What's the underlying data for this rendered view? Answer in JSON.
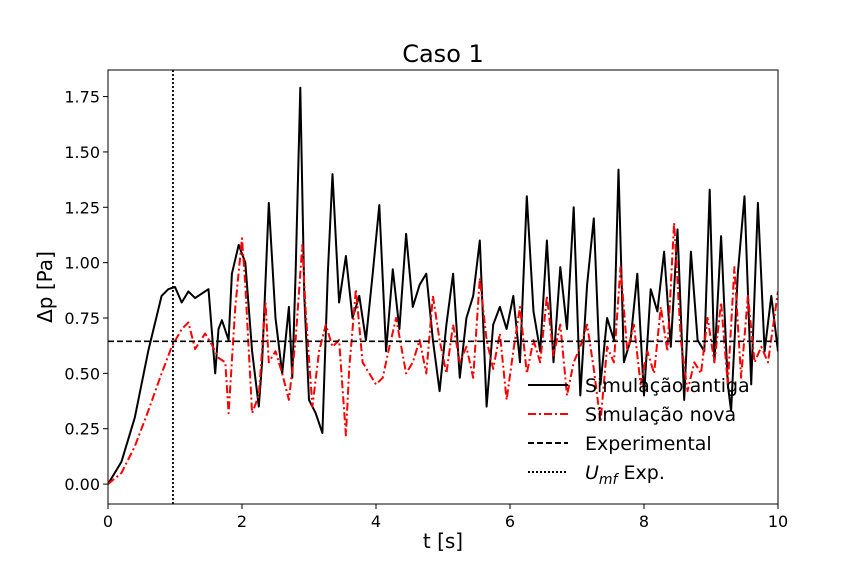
{
  "chart_data": {
    "type": "line",
    "title": "Caso 1",
    "xlabel": "t [s]",
    "ylabel": "Δp [Pa]",
    "xlim": [
      0,
      10
    ],
    "ylim": [
      -0.09,
      1.87
    ],
    "xticks": [
      0,
      2,
      4,
      6,
      8,
      10
    ],
    "xtick_labels": [
      "0",
      "2",
      "4",
      "6",
      "8",
      "10"
    ],
    "yticks": [
      0.0,
      0.25,
      0.5,
      0.75,
      1.0,
      1.25,
      1.5,
      1.75
    ],
    "ytick_labels": [
      "0.00",
      "0.25",
      "0.50",
      "0.75",
      "1.00",
      "1.25",
      "1.50",
      "1.75"
    ],
    "grid": false,
    "legend_position": "bottom-right",
    "series": [
      {
        "name": "Simulação antiga",
        "color": "#000000",
        "style": "solid",
        "x": [
          0,
          0.2,
          0.4,
          0.6,
          0.8,
          0.9,
          1.0,
          1.1,
          1.2,
          1.3,
          1.4,
          1.5,
          1.6,
          1.65,
          1.7,
          1.8,
          1.85,
          1.95,
          2.05,
          2.15,
          2.25,
          2.3,
          2.4,
          2.5,
          2.6,
          2.7,
          2.75,
          2.8,
          2.87,
          2.93,
          3.0,
          3.1,
          3.2,
          3.28,
          3.35,
          3.45,
          3.55,
          3.65,
          3.75,
          3.85,
          3.95,
          4.05,
          4.15,
          4.25,
          4.35,
          4.45,
          4.55,
          4.65,
          4.75,
          4.85,
          4.95,
          5.05,
          5.15,
          5.25,
          5.35,
          5.45,
          5.55,
          5.65,
          5.75,
          5.85,
          5.95,
          6.05,
          6.15,
          6.25,
          6.35,
          6.45,
          6.55,
          6.65,
          6.75,
          6.85,
          6.95,
          7.05,
          7.15,
          7.25,
          7.35,
          7.45,
          7.55,
          7.62,
          7.7,
          7.8,
          7.9,
          8.0,
          8.1,
          8.2,
          8.3,
          8.4,
          8.5,
          8.6,
          8.7,
          8.8,
          8.9,
          8.98,
          9.05,
          9.15,
          9.25,
          9.3,
          9.4,
          9.5,
          9.6,
          9.7,
          9.8,
          9.9,
          10.0
        ],
        "y": [
          0.0,
          0.1,
          0.3,
          0.6,
          0.85,
          0.88,
          0.89,
          0.82,
          0.87,
          0.84,
          0.86,
          0.88,
          0.5,
          0.7,
          0.74,
          0.65,
          0.95,
          1.08,
          1.0,
          0.6,
          0.35,
          0.55,
          1.27,
          0.75,
          0.5,
          0.8,
          0.48,
          0.95,
          1.79,
          0.85,
          0.38,
          0.32,
          0.23,
          0.95,
          1.4,
          0.82,
          1.03,
          0.75,
          0.85,
          0.65,
          0.95,
          1.26,
          0.6,
          0.97,
          0.7,
          1.13,
          0.8,
          0.9,
          0.95,
          0.65,
          0.42,
          0.72,
          0.95,
          0.48,
          0.75,
          0.85,
          1.1,
          0.35,
          0.72,
          0.8,
          0.7,
          0.85,
          0.55,
          1.3,
          0.78,
          0.6,
          1.1,
          0.55,
          0.98,
          0.7,
          1.25,
          0.4,
          0.9,
          1.2,
          0.45,
          0.75,
          0.65,
          1.42,
          0.55,
          0.65,
          0.95,
          0.4,
          0.88,
          0.78,
          1.05,
          0.62,
          1.15,
          0.38,
          1.05,
          0.65,
          0.6,
          1.33,
          0.55,
          1.12,
          0.45,
          0.33,
          0.95,
          1.3,
          0.45,
          1.27,
          0.6,
          0.85,
          0.6
        ]
      },
      {
        "name": "Simulação nova",
        "color": "#ff0000",
        "style": "dashdot",
        "x": [
          0,
          0.2,
          0.4,
          0.6,
          0.8,
          0.95,
          1.1,
          1.2,
          1.3,
          1.45,
          1.55,
          1.65,
          1.75,
          1.8,
          1.9,
          2.0,
          2.05,
          2.15,
          2.25,
          2.35,
          2.4,
          2.5,
          2.6,
          2.7,
          2.8,
          2.9,
          2.95,
          3.05,
          3.15,
          3.25,
          3.35,
          3.45,
          3.55,
          3.6,
          3.7,
          3.8,
          3.9,
          4.0,
          4.1,
          4.2,
          4.3,
          4.45,
          4.55,
          4.65,
          4.75,
          4.85,
          4.95,
          5.05,
          5.15,
          5.25,
          5.35,
          5.45,
          5.55,
          5.65,
          5.75,
          5.85,
          5.95,
          6.05,
          6.15,
          6.25,
          6.35,
          6.45,
          6.55,
          6.65,
          6.75,
          6.85,
          6.95,
          7.05,
          7.15,
          7.25,
          7.35,
          7.45,
          7.55,
          7.65,
          7.75,
          7.85,
          7.95,
          8.05,
          8.15,
          8.25,
          8.35,
          8.45,
          8.55,
          8.65,
          8.75,
          8.85,
          8.95,
          9.05,
          9.15,
          9.25,
          9.35,
          9.45,
          9.55,
          9.65,
          9.75,
          9.85,
          10.0
        ],
        "y": [
          0.0,
          0.05,
          0.17,
          0.33,
          0.5,
          0.62,
          0.7,
          0.73,
          0.61,
          0.68,
          0.63,
          0.57,
          0.55,
          0.32,
          0.8,
          1.11,
          0.9,
          0.32,
          0.4,
          0.82,
          0.55,
          0.6,
          0.5,
          0.38,
          0.65,
          1.08,
          0.78,
          0.35,
          0.6,
          0.72,
          0.62,
          0.65,
          0.22,
          0.52,
          0.88,
          0.55,
          0.5,
          0.45,
          0.48,
          0.62,
          0.75,
          0.5,
          0.55,
          0.65,
          0.5,
          0.85,
          0.65,
          0.5,
          0.72,
          0.55,
          0.62,
          0.48,
          0.93,
          0.65,
          0.52,
          0.68,
          0.38,
          0.6,
          0.8,
          0.5,
          0.65,
          0.55,
          0.85,
          0.58,
          0.72,
          0.4,
          0.55,
          0.62,
          0.72,
          0.52,
          0.28,
          0.62,
          0.55,
          0.98,
          0.6,
          0.72,
          0.45,
          0.6,
          0.5,
          0.8,
          0.6,
          1.18,
          0.65,
          0.42,
          0.55,
          0.5,
          0.75,
          0.55,
          0.82,
          0.45,
          0.98,
          0.48,
          0.85,
          0.55,
          0.62,
          0.55,
          0.87
        ]
      },
      {
        "name": "Experimental",
        "color": "#000000",
        "style": "dashed",
        "x": [
          0,
          10
        ],
        "y": [
          0.645,
          0.645
        ]
      }
    ],
    "vlines": [
      {
        "name": "U_mf Exp.",
        "x": 0.97,
        "color": "#000000",
        "style": "dotted"
      }
    ],
    "legend": {
      "entries": [
        "Simulação antiga",
        "Simulação nova",
        "Experimental",
        "U_mf Exp."
      ]
    }
  }
}
